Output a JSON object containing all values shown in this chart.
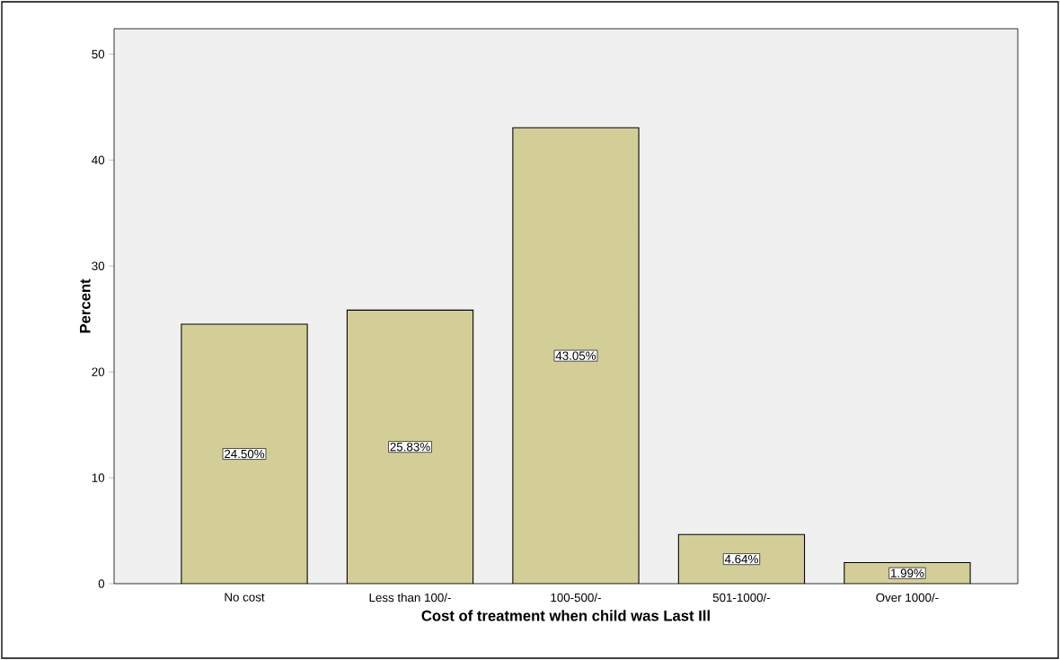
{
  "chart_data": {
    "type": "bar",
    "xlabel": "Cost of treatment when child was Last Ill",
    "ylabel": "Percent",
    "categories": [
      "No cost",
      "Less than 100/-",
      "100-500/-",
      "501-1000/-",
      "Over 1000/-"
    ],
    "values": [
      24.5,
      25.83,
      43.05,
      4.64,
      1.99
    ],
    "value_labels": [
      "24.50%",
      "25.83%",
      "43.05%",
      "4.64%",
      "1.99%"
    ],
    "color": "#d3ce97",
    "ylim": [
      0,
      52.4
    ],
    "yticks": [
      0,
      10,
      20,
      30,
      40,
      50
    ]
  }
}
